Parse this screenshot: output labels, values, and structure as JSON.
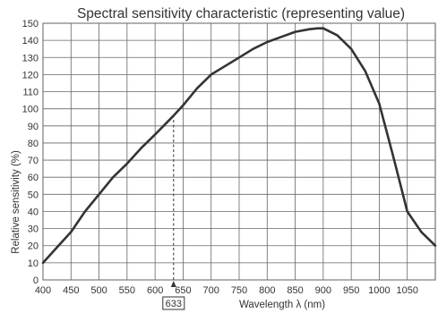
{
  "chart_data": {
    "type": "line",
    "title": "Spectral sensitivity characteristic (representing value)",
    "xlabel": "Wavelength λ (nm)",
    "ylabel": "Relative sensitivity  (%)",
    "xlim": [
      400,
      1100
    ],
    "ylim": [
      0,
      150
    ],
    "x_ticks": [
      400,
      450,
      500,
      550,
      600,
      650,
      700,
      750,
      800,
      850,
      900,
      950,
      1000,
      1050
    ],
    "x_tick_labels": [
      "400",
      "450",
      "500",
      "550",
      "600",
      "650",
      "700",
      "750",
      "800",
      "850",
      "900",
      "950",
      "1000",
      "1050"
    ],
    "y_ticks": [
      0,
      10,
      20,
      30,
      40,
      50,
      60,
      70,
      80,
      90,
      100,
      110,
      120,
      130,
      140,
      150
    ],
    "y_tick_labels": [
      "0",
      "10",
      "20",
      "30",
      "40",
      "50",
      "60",
      "70",
      "80",
      "90",
      "100",
      "110",
      "120",
      "130",
      "140",
      "150"
    ],
    "grid": true,
    "legend": "none",
    "series": [
      {
        "x": [
          400,
          425,
          450,
          475,
          500,
          525,
          550,
          575,
          600,
          633,
          650,
          675,
          700,
          725,
          750,
          775,
          800,
          825,
          850,
          875,
          890,
          900,
          925,
          950,
          975,
          1000,
          1025,
          1050,
          1075,
          1100
        ],
        "y": [
          10,
          19,
          28,
          40,
          50,
          60,
          68,
          77,
          85,
          96,
          102,
          112,
          120,
          125,
          130,
          135,
          139,
          142,
          145,
          146.5,
          147,
          147,
          143,
          135,
          122,
          103,
          72,
          40,
          28,
          20
        ],
        "color": "#333333"
      }
    ],
    "annotations": [
      {
        "x": 633,
        "label": "633",
        "style": "dashed vertical line from axis to curve, boxed label below axis"
      }
    ]
  }
}
